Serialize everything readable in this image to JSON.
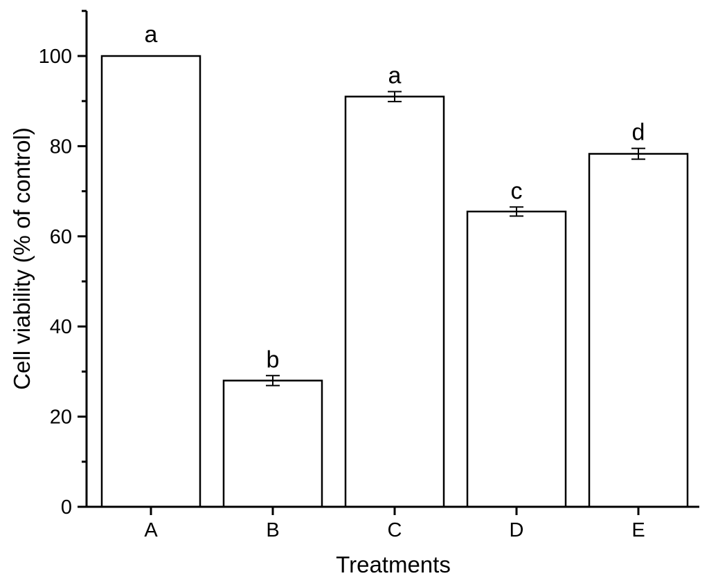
{
  "figure": {
    "ylabel": "Cell viability (% of control)",
    "xlabel": "Treatments",
    "background_color": "#ffffff",
    "foreground_color": "#000000"
  },
  "chart_data": {
    "type": "bar",
    "title": "",
    "xlabel": "Treatments",
    "ylabel": "Cell viability (% of control)",
    "categories": [
      "A",
      "B",
      "C",
      "D",
      "E"
    ],
    "values": [
      100,
      28,
      91,
      65.5,
      78.3
    ],
    "errors": [
      0,
      1.1,
      1.1,
      1.0,
      1.2
    ],
    "bar_labels": [
      "a",
      "b",
      "a",
      "c",
      "d"
    ],
    "ylim": [
      0,
      110
    ],
    "ytick_major": [
      0,
      20,
      40,
      60,
      80,
      100
    ],
    "ytick_minor": [
      10,
      30,
      50,
      70,
      90,
      110
    ],
    "grid": false,
    "legend": "none",
    "bar_fill": "#ffffff",
    "bar_stroke": "#000000",
    "axis_color": "#000000"
  }
}
